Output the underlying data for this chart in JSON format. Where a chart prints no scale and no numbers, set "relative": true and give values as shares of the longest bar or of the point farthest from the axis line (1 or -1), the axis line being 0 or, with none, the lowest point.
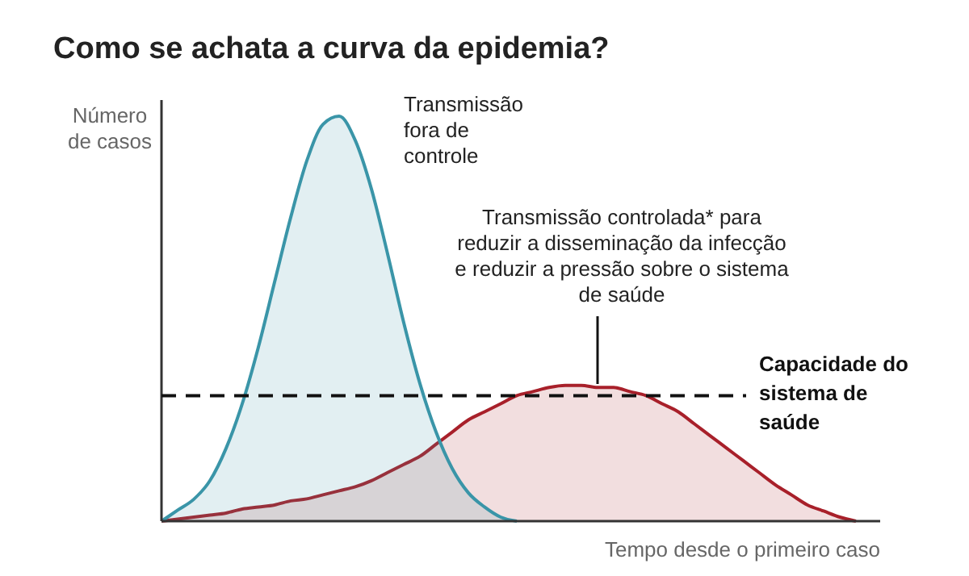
{
  "chart_data": {
    "type": "area",
    "title": "Como se achata a curva da epidemia?",
    "xlabel": "Tempo desde o primeiro caso",
    "ylabel": "Número de casos",
    "relative": true,
    "categories": [
      null,
      null,
      null,
      null,
      null,
      null,
      null,
      null,
      null,
      null,
      null,
      null,
      null,
      null,
      null,
      null,
      null,
      null,
      null,
      null,
      null,
      null,
      null,
      null,
      null,
      null,
      null,
      null,
      null,
      null,
      null,
      null,
      null,
      null,
      null,
      null,
      null,
      null,
      null,
      null,
      null,
      null,
      null,
      null,
      null
    ],
    "series": [
      {
        "color": "#3a95a8",
        "values": [
          0,
          0.027,
          0.054,
          0.1,
          0.18,
          0.29,
          0.43,
          0.59,
          0.75,
          0.89,
          0.98,
          1,
          0.94,
          0.82,
          0.66,
          0.49,
          0.34,
          0.22,
          0.13,
          0.07,
          0.035,
          0.01,
          0,
          null,
          null,
          null,
          null,
          null,
          null,
          null,
          null,
          null,
          null,
          null,
          null,
          null,
          null,
          null,
          null,
          null,
          null,
          null,
          null,
          null,
          null
        ]
      },
      {
        "color": "#a8202a",
        "values": [
          0,
          0.005,
          0.01,
          0.015,
          0.02,
          0.03,
          0.035,
          0.04,
          0.05,
          0.055,
          0.065,
          0.075,
          0.085,
          0.1,
          0.12,
          0.14,
          0.16,
          0.19,
          0.22,
          0.25,
          0.27,
          0.29,
          0.31,
          0.32,
          0.33,
          0.335,
          0.335,
          0.33,
          0.33,
          0.32,
          0.31,
          0.29,
          0.27,
          0.24,
          0.21,
          0.18,
          0.15,
          0.12,
          0.09,
          0.065,
          0.04,
          0.025,
          0.01,
          0,
          null
        ]
      }
    ],
    "ref_lines": [
      {
        "axis": "y",
        "value": 0.31,
        "label": "Capacidade do sistema de saúde",
        "line_style": "dashed",
        "color": "#111111"
      }
    ],
    "annotations": [
      "Transmissão fora de controle",
      "Transmissão controlada* para reduzir a disseminação da infecção e reduzir a pressão sobre o sistema de saúde"
    ]
  }
}
